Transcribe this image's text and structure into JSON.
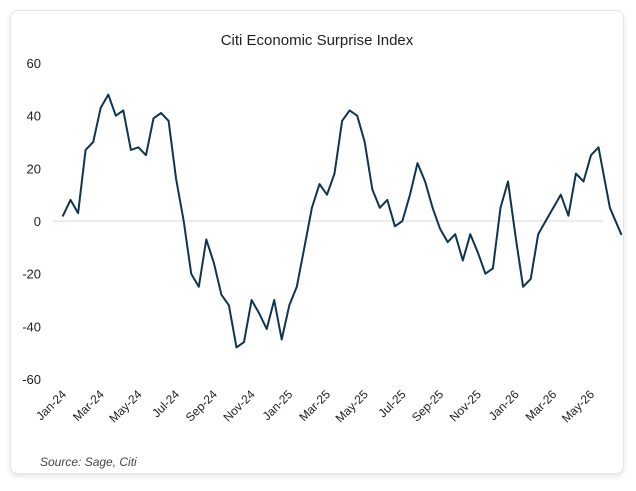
{
  "chart_data": {
    "type": "line",
    "title": "Citi Economic Surprise Index",
    "xlabel": "",
    "ylabel": "",
    "ylim": [
      -60,
      60
    ],
    "yticks": [
      -60,
      -40,
      -20,
      0,
      20,
      40,
      60
    ],
    "xticks": [
      "Jan-24",
      "Mar-24",
      "May-24",
      "Jul-24",
      "Sep-24",
      "Nov-24",
      "Jan-25",
      "Mar-25",
      "May-25",
      "Jul-25",
      "Sep-25",
      "Nov-25",
      "Jan-26",
      "Mar-26",
      "May-26"
    ],
    "grid": false,
    "zero_line": true,
    "color": "#0d3552",
    "series": [
      {
        "x": [
          0,
          0.2,
          0.4,
          0.6,
          0.8,
          1.0,
          1.2,
          1.4,
          1.6,
          1.8,
          2.0,
          2.2,
          2.4,
          2.6,
          2.8,
          3.0,
          3.2,
          3.4,
          3.6,
          3.8,
          4.0,
          4.2,
          4.4,
          4.6,
          4.8,
          5.0,
          5.2,
          5.4,
          5.6,
          5.8,
          6.0,
          6.2,
          6.4,
          6.6,
          6.8,
          7.0,
          7.2,
          7.4,
          7.6,
          7.8,
          8.0,
          8.2,
          8.4,
          8.6,
          8.8,
          9.0,
          9.2,
          9.4,
          9.6,
          9.8,
          10.0,
          10.2,
          10.4,
          10.6,
          10.8,
          11.0,
          11.2,
          11.4,
          11.6,
          11.8,
          12.0,
          12.2,
          12.4,
          12.6,
          12.8,
          13.0,
          13.2,
          13.4,
          13.6,
          13.8,
          14.0,
          14.2,
          14.5,
          14.8
        ],
        "values": [
          2,
          8,
          3,
          27,
          30,
          43,
          48,
          40,
          42,
          27,
          28,
          25,
          39,
          41,
          38,
          16,
          0,
          -20,
          -25,
          -7,
          -16,
          -28,
          -32,
          -48,
          -46,
          -30,
          -35,
          -41,
          -30,
          -45,
          -32,
          -25,
          -10,
          5,
          14,
          10,
          18,
          38,
          42,
          40,
          30,
          12,
          5,
          8,
          -2,
          0,
          10,
          22,
          15,
          5,
          -3,
          -8,
          -5,
          -15,
          -5,
          -12,
          -20,
          -18,
          5,
          15,
          -6,
          -25,
          -22,
          -5,
          0,
          5,
          10,
          2,
          18,
          15,
          25,
          28,
          5,
          -5
        ]
      }
    ]
  },
  "source": "Source: Sage, Citi"
}
